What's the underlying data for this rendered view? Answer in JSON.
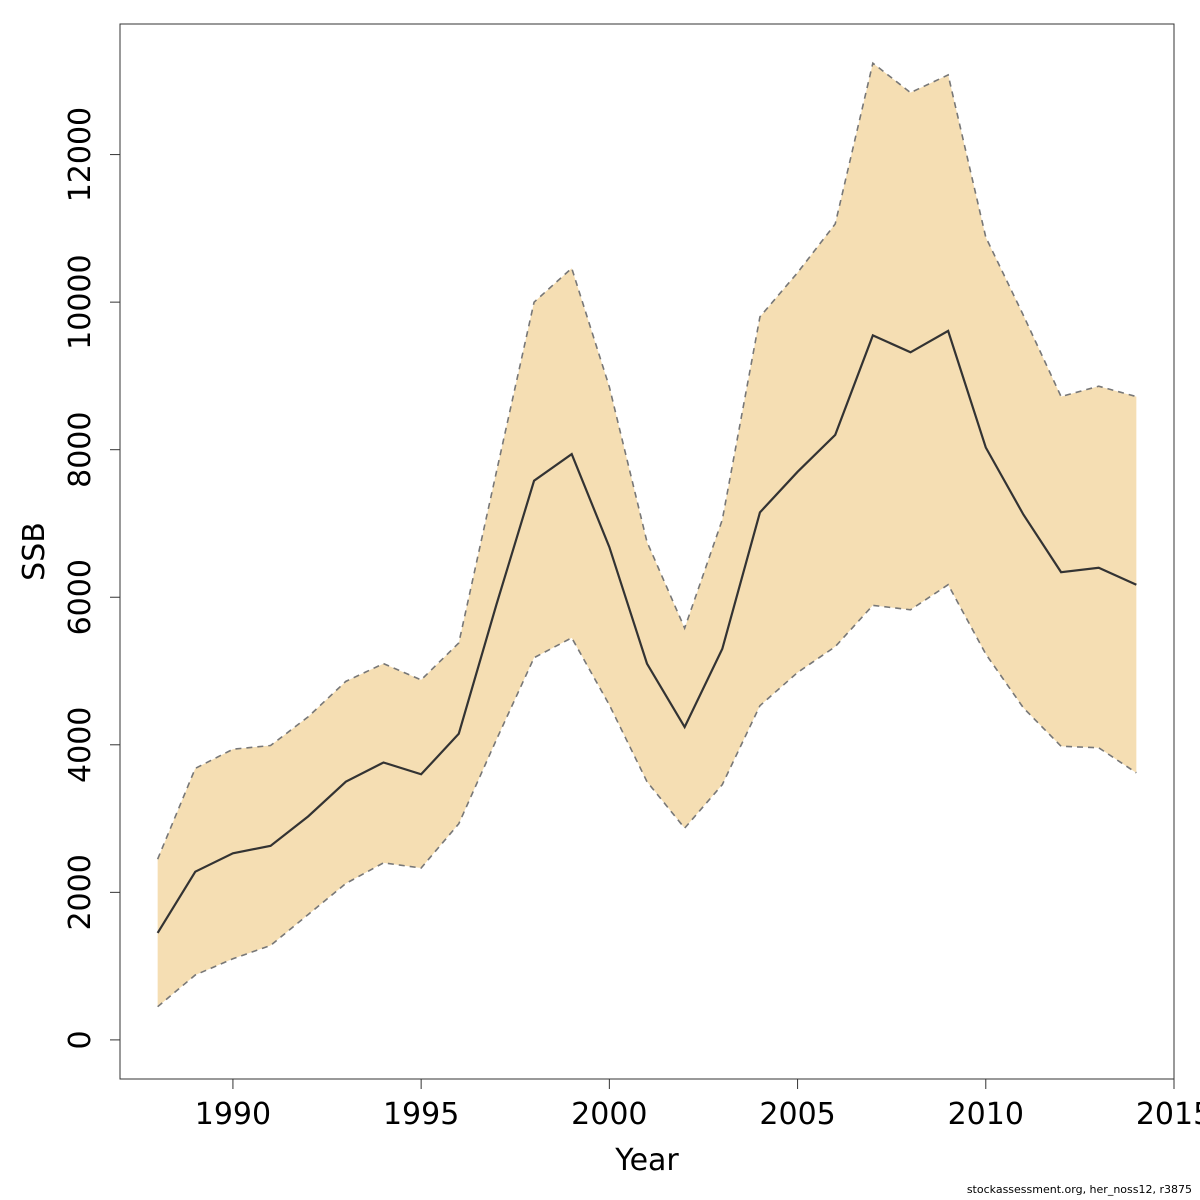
{
  "chart_data": {
    "type": "area",
    "title": "",
    "xlabel": "Year",
    "ylabel": "SSB",
    "xlim": [
      1988,
      2015
    ],
    "ylim": [
      0,
      13500
    ],
    "x_ticks": [
      1990,
      1995,
      2000,
      2005,
      2010,
      2015
    ],
    "y_ticks": [
      0,
      2000,
      4000,
      6000,
      8000,
      10000,
      12000
    ],
    "grid": false,
    "legend": "none",
    "x": [
      1988,
      1989,
      1990,
      1991,
      1992,
      1993,
      1994,
      1995,
      1996,
      1997,
      1998,
      1999,
      2000,
      2001,
      2002,
      2003,
      2004,
      2005,
      2006,
      2007,
      2008,
      2009,
      2010,
      2011,
      2012,
      2013,
      2014
    ],
    "series": [
      {
        "role": "estimate",
        "values": [
          1450,
          2280,
          2530,
          2630,
          3030,
          3500,
          3760,
          3600,
          4150,
          5900,
          7580,
          7940,
          6680,
          5100,
          4240,
          5300,
          7150,
          7700,
          8200,
          9550,
          9320,
          9610,
          8030,
          7120,
          6340,
          6400,
          6170
        ],
        "color": "#333333"
      },
      {
        "role": "upper",
        "values": [
          2450,
          3680,
          3940,
          3990,
          4380,
          4860,
          5100,
          4880,
          5380,
          7700,
          10000,
          10460,
          8850,
          6750,
          5580,
          7050,
          9800,
          10400,
          11060,
          13240,
          12840,
          13080,
          10880,
          9820,
          8720,
          8860,
          8720
        ],
        "color": "#777777"
      },
      {
        "role": "lower",
        "values": [
          450,
          880,
          1100,
          1280,
          1700,
          2120,
          2400,
          2330,
          2930,
          4070,
          5180,
          5450,
          4540,
          3500,
          2870,
          3460,
          4530,
          4980,
          5330,
          5890,
          5830,
          6170,
          5230,
          4500,
          3980,
          3960,
          3620
        ],
        "color": "#777777"
      }
    ],
    "band_color": "#F5DEB3",
    "line_color": "#333333",
    "bound_color": "#777777"
  },
  "footer": {
    "note": "stockassessment.org, her_noss12, r3875"
  }
}
